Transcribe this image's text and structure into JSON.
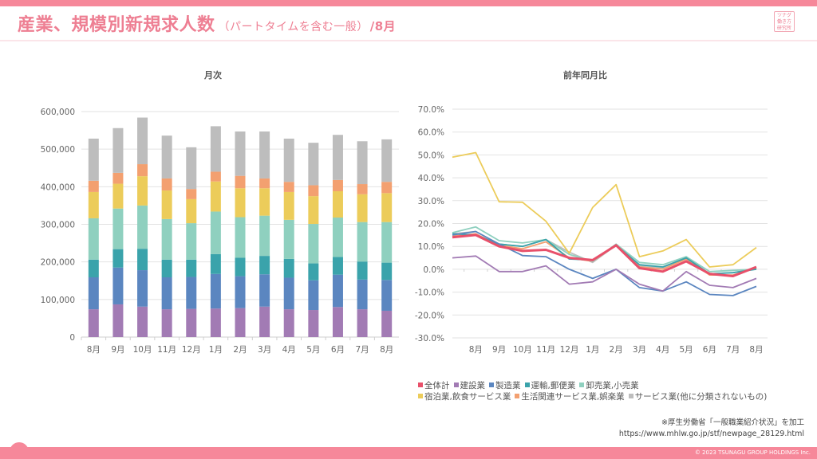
{
  "header": {
    "title": "産業、規模別新規求人数",
    "subtitle": "（パートタイムを含む一般）",
    "month": "/8月",
    "logo_lines": [
      "ツナグ",
      "働き方",
      "研究所"
    ]
  },
  "source": {
    "note": "※厚生労働省「一般職業紹介状況」を加工",
    "url": "https://www.mhlw.go.jp/stf/newpage_28129.html"
  },
  "footer": {
    "copyright": "© 2023 TSUNAGU GROUP HOLDINGS Inc."
  },
  "series_meta": [
    {
      "name": "全体計",
      "color": "#e8506a"
    },
    {
      "name": "建設業",
      "color": "#a27bb4"
    },
    {
      "name": "製造業",
      "color": "#5b86c0"
    },
    {
      "name": "運輸,郵便業",
      "color": "#3aa3ab"
    },
    {
      "name": "卸売業,小売業",
      "color": "#8fd0bf"
    },
    {
      "name": "宿泊業,飲食サービス業",
      "color": "#eccc5a"
    },
    {
      "name": "生活関連サービス業,娯楽業",
      "color": "#f3a070"
    },
    {
      "name": "サービス業(他に分類されないもの)",
      "color": "#bdbdbd"
    }
  ],
  "chart_data": [
    {
      "type": "bar",
      "stacked": true,
      "title": "月次",
      "categories": [
        "8月",
        "9月",
        "10月",
        "11月",
        "12月",
        "1月",
        "2月",
        "3月",
        "4月",
        "5月",
        "6月",
        "7月",
        "8月"
      ],
      "ylim": [
        0,
        600000
      ],
      "yticks": [
        0,
        100000,
        200000,
        300000,
        400000,
        500000,
        600000
      ],
      "ytick_labels": [
        "0",
        "100,000",
        "200,000",
        "300,000",
        "400,000",
        "500,000",
        "600,000"
      ],
      "grid": true,
      "series": [
        {
          "name": "建設業",
          "values": [
            74000,
            87000,
            81000,
            74000,
            75000,
            76000,
            77000,
            81000,
            74000,
            72000,
            80000,
            74000,
            70000
          ]
        },
        {
          "name": "製造業",
          "values": [
            85000,
            98000,
            97000,
            85000,
            85000,
            92000,
            85000,
            86000,
            84000,
            79000,
            86000,
            79000,
            82000
          ]
        },
        {
          "name": "運輸,郵便業",
          "values": [
            47000,
            49000,
            57000,
            47000,
            46000,
            53000,
            49000,
            49000,
            50000,
            45000,
            47000,
            48000,
            46000
          ]
        },
        {
          "name": "卸売業,小売業",
          "values": [
            110000,
            108000,
            115000,
            108000,
            97000,
            113000,
            108000,
            107000,
            104000,
            105000,
            105000,
            105000,
            108000
          ]
        },
        {
          "name": "宿泊業,飲食サービス業",
          "values": [
            70000,
            66000,
            78000,
            76000,
            64000,
            80000,
            77000,
            73000,
            74000,
            74000,
            70000,
            74000,
            77000
          ]
        },
        {
          "name": "生活関連サービス業,娯楽業",
          "values": [
            30000,
            29000,
            32000,
            32000,
            27000,
            26000,
            33000,
            26000,
            27000,
            29000,
            30000,
            27000,
            30000
          ]
        },
        {
          "name": "サービス業(他に分類されないもの)",
          "values": [
            112000,
            119000,
            124000,
            114000,
            111000,
            121000,
            118000,
            125000,
            115000,
            113000,
            120000,
            114000,
            113000
          ]
        }
      ]
    },
    {
      "type": "line",
      "title": "前年同月比",
      "categories": [
        "8月",
        "9月",
        "10月",
        "11月",
        "12月",
        "1月",
        "2月",
        "3月",
        "4月",
        "5月",
        "6月",
        "7月",
        "8月"
      ],
      "lead_point_note": "each series begins with one leading point at the left edge of the plot, before the first category",
      "ylim": [
        -30,
        70
      ],
      "yticks": [
        -30,
        -20,
        -10,
        0,
        10,
        20,
        30,
        40,
        50,
        60,
        70
      ],
      "ytick_labels": [
        "-30.0%",
        "-20.0%",
        "-10.0%",
        "0.0%",
        "10.0%",
        "20.0%",
        "30.0%",
        "40.0%",
        "50.0%",
        "60.0%",
        "70.0%"
      ],
      "grid": true,
      "legend": "bottom",
      "series": [
        {
          "name": "全体計",
          "values": [
            14.0,
            15.0,
            10.0,
            8.0,
            8.5,
            5.0,
            4.0,
            10.5,
            0.5,
            -1.0,
            3.5,
            -2.0,
            -3.0,
            1.0
          ]
        },
        {
          "name": "建設業",
          "values": [
            5.0,
            5.8,
            -1.0,
            -1.0,
            1.5,
            -6.5,
            -5.5,
            0.0,
            -6.5,
            -9.5,
            -1.0,
            -7.0,
            -8.0,
            -4.0
          ]
        },
        {
          "name": "製造業",
          "values": [
            15.0,
            16.5,
            11.0,
            6.0,
            5.5,
            0.0,
            -4.0,
            0.0,
            -8.0,
            -9.5,
            -5.5,
            -11.0,
            -11.5,
            -7.5
          ]
        },
        {
          "name": "運輸,郵便業",
          "values": [
            15.5,
            15.0,
            11.0,
            10.0,
            13.0,
            4.5,
            4.0,
            10.5,
            2.0,
            1.0,
            5.0,
            -2.0,
            -1.5,
            0.0
          ]
        },
        {
          "name": "卸売業,小売業",
          "values": [
            16.0,
            18.5,
            12.5,
            11.5,
            13.0,
            6.5,
            3.5,
            11.0,
            3.0,
            2.0,
            5.5,
            -1.0,
            -0.5,
            0.0
          ]
        },
        {
          "name": "宿泊業,飲食サービス業",
          "values": [
            49.0,
            51.0,
            29.5,
            29.3,
            21.0,
            7.0,
            27.0,
            37.0,
            5.5,
            8.0,
            13.0,
            1.0,
            2.0,
            9.5
          ]
        },
        {
          "name": "生活関連サービス業,娯楽業",
          "values": [
            14.5,
            15.5,
            10.5,
            9.0,
            12.0,
            5.0,
            3.5,
            10.5,
            1.0,
            0.0,
            4.5,
            -2.5,
            -2.5,
            0.5
          ]
        },
        {
          "name": "サービス業(他に分類されないもの)",
          "values": [
            15.5,
            16.5,
            11.0,
            10.0,
            13.0,
            7.5,
            3.0,
            10.5,
            1.5,
            0.5,
            5.0,
            -2.0,
            -1.5,
            0.5
          ]
        }
      ]
    }
  ]
}
